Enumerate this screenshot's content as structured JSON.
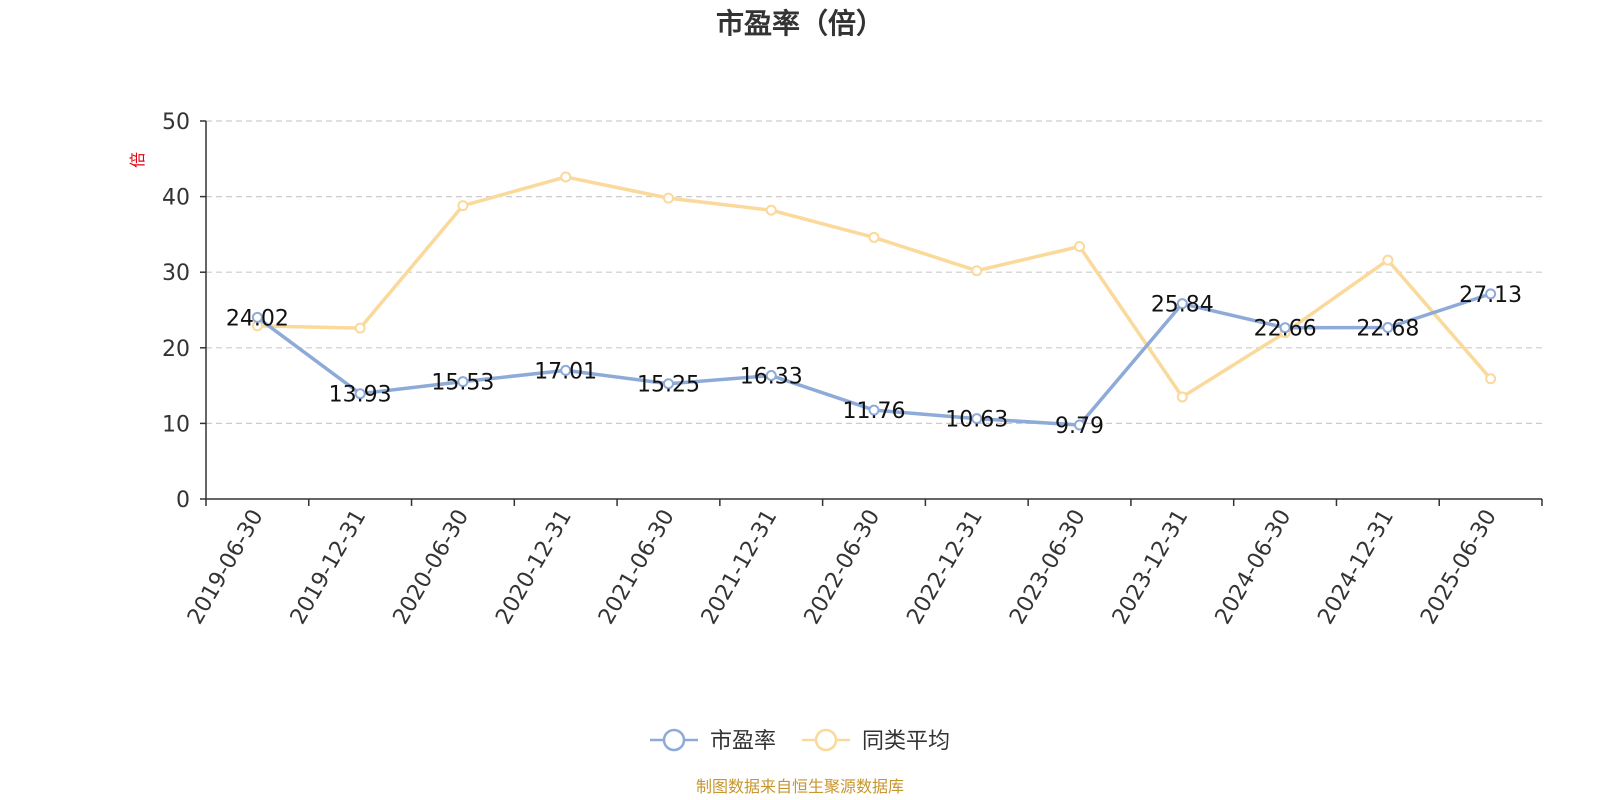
{
  "chart_data": {
    "type": "line",
    "title": "市盈率（倍）",
    "y_unit": "倍",
    "x": [
      "2019-06-30",
      "2019-12-31",
      "2020-06-30",
      "2020-12-31",
      "2021-06-30",
      "2021-12-31",
      "2022-06-30",
      "2022-12-31",
      "2023-06-30",
      "2023-12-31",
      "2024-06-30",
      "2024-12-31",
      "2025-06-30"
    ],
    "ylim": [
      0,
      50
    ],
    "yticks": [
      "0",
      "10",
      "20",
      "30",
      "40",
      "50"
    ],
    "grid": true,
    "legend_position": "bottom",
    "series": [
      {
        "name": "市盈率",
        "color": "#8eaad8",
        "values": [
          24.02,
          13.93,
          15.53,
          17.01,
          15.25,
          16.33,
          11.76,
          10.63,
          9.79,
          25.84,
          22.66,
          22.68,
          27.13
        ],
        "labels": [
          "24.02",
          "13.93",
          "15.53",
          "17.01",
          "15.25",
          "16.33",
          "11.76",
          "10.63",
          "9.79",
          "25.84",
          "22.66",
          "22.68",
          "27.13"
        ]
      },
      {
        "name": "同类平均",
        "color": "#fad99b",
        "values": [
          22.9,
          22.6,
          38.8,
          42.6,
          39.8,
          38.2,
          34.6,
          30.2,
          33.4,
          13.5,
          22.0,
          31.6,
          15.9
        ]
      }
    ],
    "source": "制图数据来自恒生聚源数据库"
  }
}
